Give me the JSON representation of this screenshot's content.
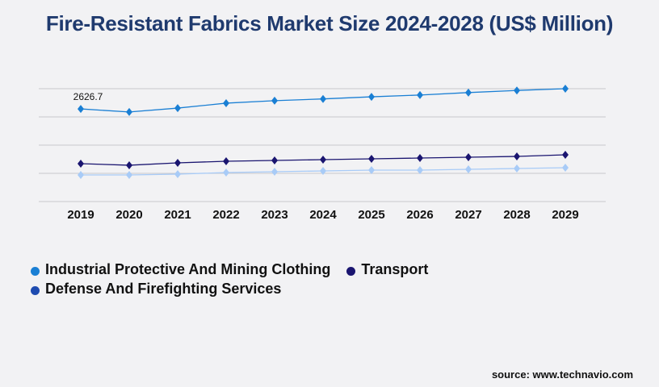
{
  "chart_data": {
    "type": "line",
    "title": "Fire-Resistant Fabrics Market Size 2024-2028 (US$ Million)",
    "x": [
      "2019",
      "2020",
      "2021",
      "2022",
      "2023",
      "2024",
      "2025",
      "2026",
      "2027",
      "2028",
      "2029"
    ],
    "ylim": [
      0,
      3200
    ],
    "grid": true,
    "legend_position": "bottom-left",
    "annotations": [
      {
        "x": "2019",
        "series": "Industrial Protective And Mining Clothing",
        "label": "2626.7"
      }
    ],
    "series": [
      {
        "name": "Industrial Protective And Mining Clothing",
        "color": "#1a7fd4",
        "legend_color": "#1a7fd4",
        "values": [
          2626.7,
          2540,
          2650,
          2790,
          2860,
          2910,
          2970,
          3020,
          3090,
          3150,
          3200
        ]
      },
      {
        "name": "Transport",
        "color": "#1a1570",
        "legend_color": "#1a1570",
        "values": [
          1074,
          1030,
          1097,
          1143,
          1166,
          1189,
          1211,
          1234,
          1257,
          1280,
          1326
        ]
      },
      {
        "name": "Defense And Firefighting Services",
        "color": "#a8cbf7",
        "legend_color": "#1e4bb0",
        "values": [
          754,
          754,
          777,
          823,
          846,
          869,
          891,
          891,
          914,
          937,
          960
        ]
      }
    ]
  },
  "source": "source: www.technavio.com"
}
